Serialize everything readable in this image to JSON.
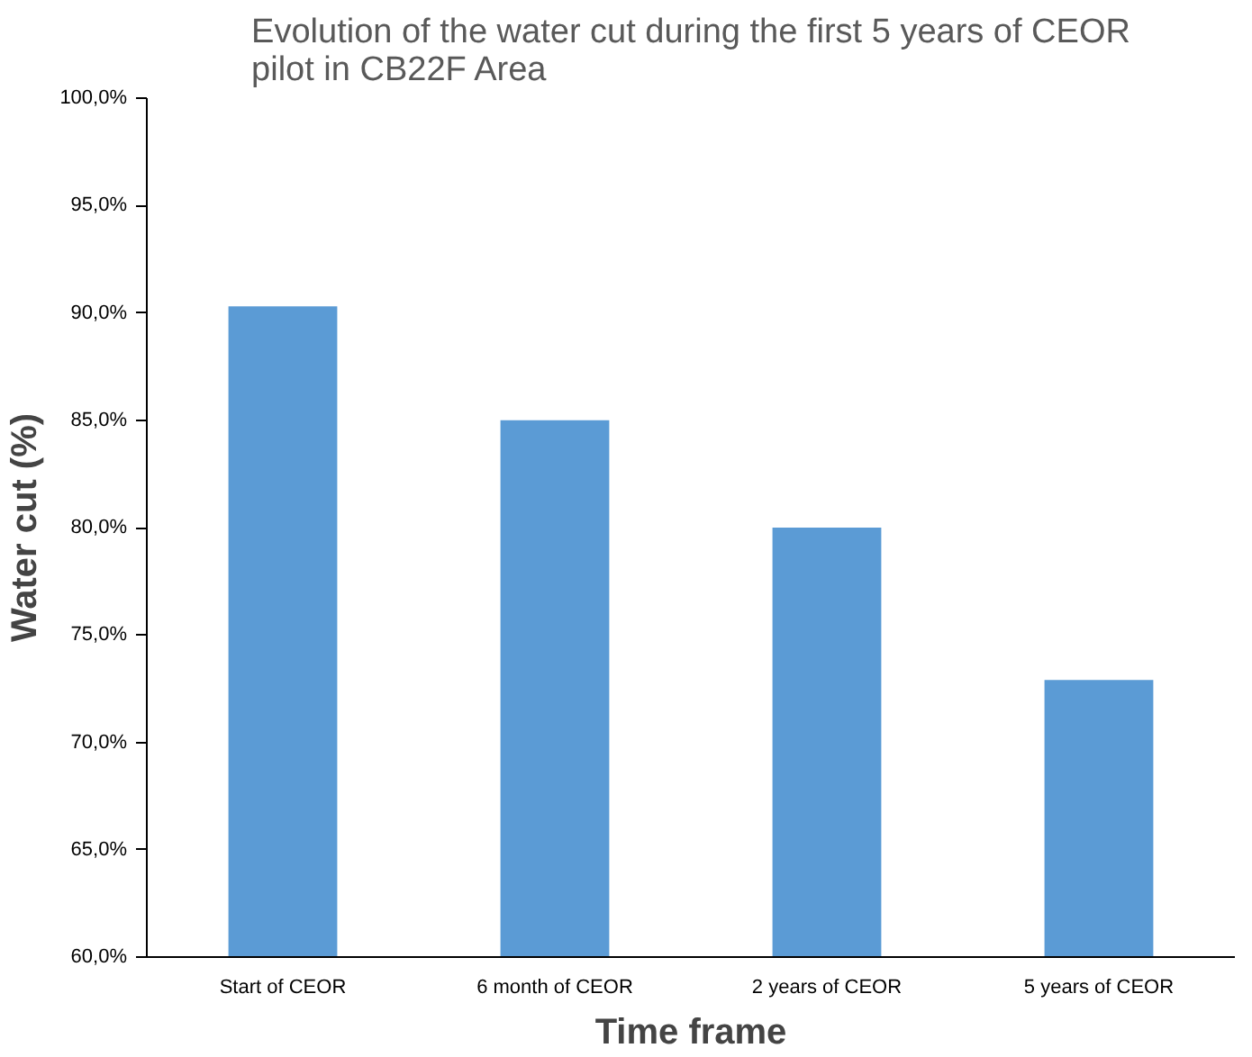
{
  "chart_data": {
    "type": "bar",
    "title": "Evolution of the water cut during the first 5 years of CEOR\npilot in CB22F Area",
    "xlabel": "Time frame",
    "ylabel": "Water cut (%)",
    "categories": [
      "Start of CEOR",
      "6 month of CEOR",
      "2 years of CEOR",
      "5 years of CEOR"
    ],
    "values": [
      90.3,
      85.0,
      80.0,
      72.9
    ],
    "color": "#5b9bd5",
    "ylim": [
      60,
      100
    ],
    "yticks": [
      {
        "value": 60,
        "label": "60,0%"
      },
      {
        "value": 65,
        "label": "65,0%"
      },
      {
        "value": 70,
        "label": "70,0%"
      },
      {
        "value": 75,
        "label": "75,0%"
      },
      {
        "value": 80,
        "label": "80,0%"
      },
      {
        "value": 85,
        "label": "85,0%"
      },
      {
        "value": 90,
        "label": "90,0%"
      },
      {
        "value": 95,
        "label": "95,0%"
      },
      {
        "value": 100,
        "label": "100,0%"
      }
    ],
    "grid": false
  }
}
